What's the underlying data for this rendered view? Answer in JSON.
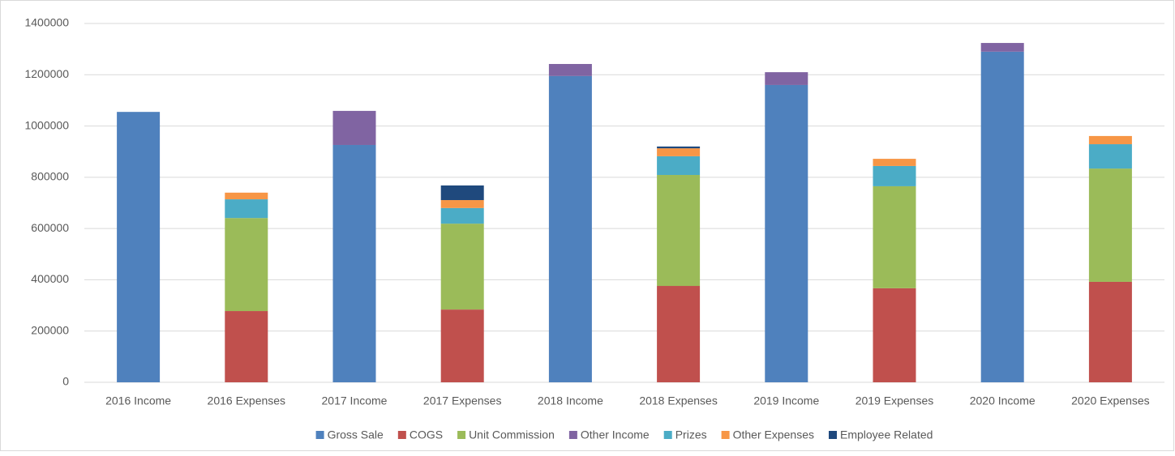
{
  "chart_data": {
    "type": "stacked_bar",
    "categories": [
      "2016 Income",
      "2016 Expenses",
      "2017 Income",
      "2017 Expenses",
      "2018 Income",
      "2018 Expenses",
      "2019 Income",
      "2019 Expenses",
      "2020 Income",
      "2020 Expenses"
    ],
    "series": [
      {
        "name": "Gross Sale",
        "color": "#4f81bd",
        "values": [
          1055000,
          0,
          926000,
          0,
          1195000,
          0,
          1160000,
          0,
          1290000,
          0
        ]
      },
      {
        "name": "COGS",
        "color": "#c0504d",
        "values": [
          0,
          278000,
          0,
          284000,
          0,
          376000,
          0,
          367000,
          0,
          392000
        ]
      },
      {
        "name": "Unit Commission",
        "color": "#9bbb59",
        "values": [
          0,
          363000,
          0,
          335000,
          0,
          433000,
          0,
          398000,
          0,
          442000
        ]
      },
      {
        "name": "Other Income",
        "color": "#8064a2",
        "values": [
          0,
          0,
          133000,
          0,
          47000,
          0,
          50000,
          0,
          34000,
          0
        ]
      },
      {
        "name": "Prizes",
        "color": "#4bacc6",
        "values": [
          0,
          73000,
          0,
          61000,
          0,
          73000,
          0,
          79000,
          0,
          95000
        ]
      },
      {
        "name": "Other Expenses",
        "color": "#f79646",
        "values": [
          0,
          26000,
          0,
          31000,
          0,
          31000,
          0,
          28000,
          0,
          32000
        ]
      },
      {
        "name": "Employee Related",
        "color": "#1f497d",
        "values": [
          0,
          0,
          0,
          57000,
          0,
          7000,
          0,
          0,
          0,
          0
        ]
      }
    ],
    "ylim": [
      0,
      1400000
    ],
    "yticks": [
      0,
      200000,
      400000,
      600000,
      800000,
      1000000,
      1200000,
      1400000
    ],
    "grid": true,
    "legend": "bottom"
  }
}
